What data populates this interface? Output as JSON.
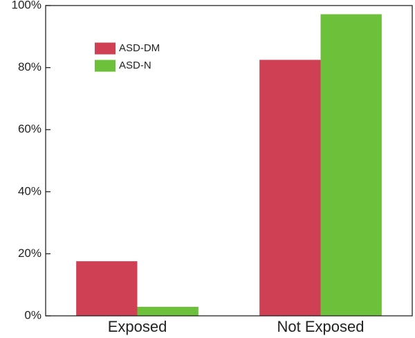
{
  "chart_data": {
    "type": "bar",
    "categories": [
      "Exposed",
      "Not Exposed"
    ],
    "series": [
      {
        "name": "ASD-DM",
        "color": "#d04055",
        "values": [
          17.6,
          82.5
        ]
      },
      {
        "name": "ASD-N",
        "color": "#6cc03a",
        "values": [
          2.9,
          97.2
        ]
      }
    ],
    "ylim": [
      0,
      100
    ],
    "yticks": [
      {
        "value": 0,
        "label": "0%"
      },
      {
        "value": 20,
        "label": "20%"
      },
      {
        "value": 40,
        "label": "40%"
      },
      {
        "value": 60,
        "label": "60%"
      },
      {
        "value": 80,
        "label": "80%"
      },
      {
        "value": 100,
        "label": "100%"
      }
    ],
    "legend": "upper-left"
  }
}
